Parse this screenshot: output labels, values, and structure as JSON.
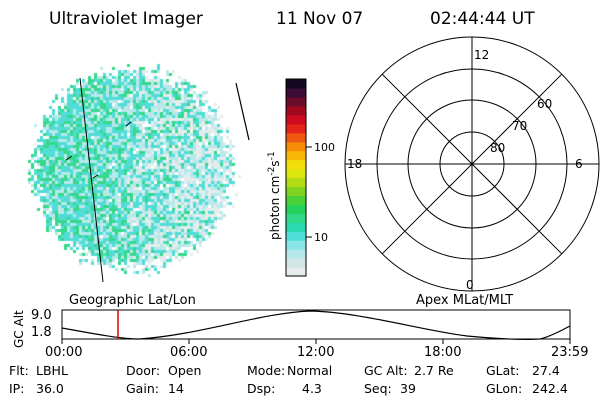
{
  "header": {
    "title": "Ultraviolet Imager",
    "date": "11 Nov 07",
    "time": "02:44:44 UT"
  },
  "colorbar": {
    "unit_prefix": "photon cm",
    "unit_exp1": "-2",
    "unit_mid": "s",
    "unit_exp2": "-1",
    "tick_labels": [
      "100",
      "10"
    ],
    "colors": [
      "#e6ecec",
      "#d2e6e6",
      "#b4e8ea",
      "#8ae6e6",
      "#4ee0d8",
      "#2ad9b0",
      "#30d888",
      "#22d25a",
      "#4ad038",
      "#7ed420",
      "#b2dc14",
      "#dce60e",
      "#f4de0a",
      "#f8b808",
      "#f48c08",
      "#ee5810",
      "#e42418",
      "#cc0c1e",
      "#a0081e",
      "#6c0c2c",
      "#3a0c36",
      "#140822"
    ]
  },
  "image_panel": {
    "colors": {
      "pale": "#e4ecec",
      "cyan": "#b8e8ea",
      "teal": "#52dcd6",
      "green": "#36d88a"
    }
  },
  "polar_grid": {
    "mlt_labels": {
      "top": "12",
      "right": "6",
      "bottom": "0",
      "left": "18"
    },
    "lat_labels": [
      "60",
      "70",
      "80"
    ]
  },
  "panel_labels": {
    "left": "Geographic Lat/Lon",
    "right": "Apex MLat/MLT"
  },
  "altitude_plot": {
    "ylabel": "GC Alt",
    "yticks": [
      "9.0",
      "1.8"
    ],
    "xticks": [
      "00:00",
      "06:00",
      "12:00",
      "18:00",
      "23:59"
    ],
    "marker_color": "#e00000"
  },
  "info": {
    "row1": [
      {
        "key": "Flt:",
        "value": "LBHL"
      },
      {
        "key": "Door:",
        "value": "Open"
      },
      {
        "key": "Mode:",
        "value": "Normal"
      },
      {
        "key": "GC Alt:",
        "value": "2.7 Re"
      },
      {
        "key": "GLat:",
        "value": "27.4"
      }
    ],
    "row2": [
      {
        "key": "IP:",
        "value": "36.0"
      },
      {
        "key": "Gain:",
        "value": "14"
      },
      {
        "key": "Dsp:",
        "value": "4.3"
      },
      {
        "key": "Seq:",
        "value": "39"
      },
      {
        "key": "GLon:",
        "value": "242.4"
      }
    ]
  }
}
